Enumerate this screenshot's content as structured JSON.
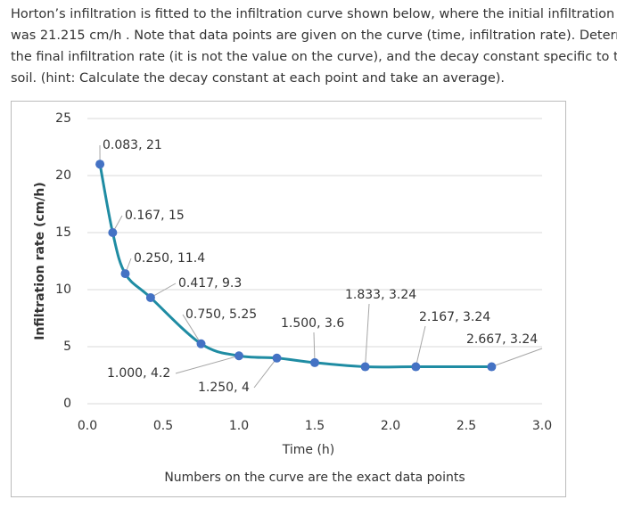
{
  "question": {
    "lines": [
      "Horton’s infiltration is fitted to the infiltration curve shown below, where the initial infiltration rate",
      "was 21.215 cm/h . Note that data points are given on the curve (time, infiltration rate). Determine",
      "the final infiltration rate (it is not the value on the curve), and the decay constant specific to the",
      "soil. (hint: Calculate the decay constant at each point and take an average)."
    ]
  },
  "chart_data": {
    "type": "line",
    "x_label": "Time (h)",
    "y_label": "Infiltration rate (cm/h)",
    "note": "Numbers on the curve are the exact data points",
    "x": [
      0.083,
      0.167,
      0.25,
      0.417,
      0.75,
      1.0,
      1.25,
      1.5,
      1.833,
      2.167,
      2.667
    ],
    "values": [
      21,
      15,
      11.4,
      9.3,
      5.25,
      4.2,
      4,
      3.6,
      3.24,
      3.24,
      3.24
    ],
    "value_labels": [
      "0.083, 21",
      "0.167, 15",
      "0.250, 11.4",
      "0.417, 9.3",
      "0.750, 5.25",
      "1.000, 4.2",
      "1.250, 4",
      "1.500, 3.6",
      "1.833, 3.24",
      "2.167, 3.24",
      "2.667, 3.24"
    ],
    "color": "#1f8ca3",
    "marker_color": "#4472c4",
    "xlim": [
      0,
      3
    ],
    "xticks": [
      {
        "value": 0,
        "label": "0.0"
      },
      0.5,
      {
        "value": 1,
        "label": "1.0"
      },
      1.5,
      {
        "value": 2,
        "label": "2.0"
      },
      2.5,
      {
        "value": 3,
        "label": "3.0"
      }
    ],
    "ylim": [
      0,
      25
    ],
    "yticks": [
      0,
      5,
      10,
      15,
      20,
      25
    ],
    "grid": true
  }
}
